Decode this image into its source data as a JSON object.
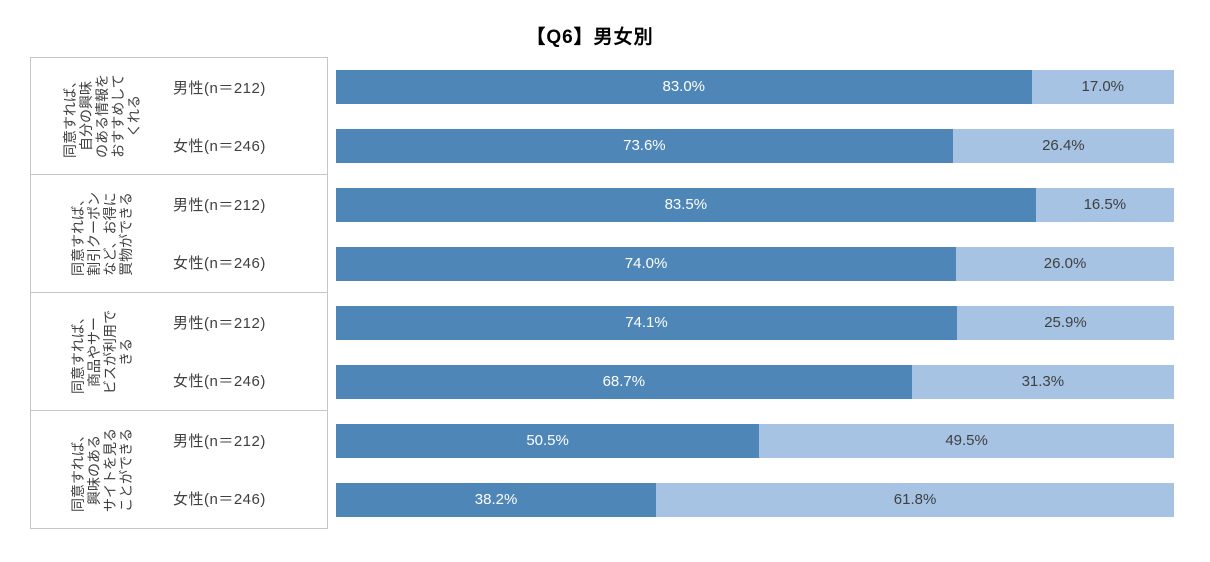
{
  "title": "【Q6】男女別",
  "colors": {
    "segment_primary": "#4e86b8",
    "segment_secondary": "#a6c3e3",
    "label_box_border": "#c6c6c6",
    "label_text": "#404040"
  },
  "chart_data": {
    "type": "bar",
    "orientation": "horizontal",
    "stacked": true,
    "title": "【Q6】男女別",
    "value_suffix": "%",
    "xlim": [
      0,
      100
    ],
    "grid": false,
    "legend": false,
    "groups": [
      {
        "label": "同意すれば、\n自分の興味\nのある情報を\nおすすめして\nくれる",
        "rows": [
          {
            "label": "男性(n＝212)",
            "values": [
              83.0,
              17.0
            ]
          },
          {
            "label": "女性(n＝246)",
            "values": [
              73.6,
              26.4
            ]
          }
        ]
      },
      {
        "label": "同意すれば、\n割引クーポン\nなど、お得に\n買物ができる",
        "rows": [
          {
            "label": "男性(n＝212)",
            "values": [
              83.5,
              16.5
            ]
          },
          {
            "label": "女性(n＝246)",
            "values": [
              74.0,
              26.0
            ]
          }
        ]
      },
      {
        "label": "同意すれば、\n商品やサー\nビスが利用で\nきる",
        "rows": [
          {
            "label": "男性(n＝212)",
            "values": [
              74.1,
              25.9
            ]
          },
          {
            "label": "女性(n＝246)",
            "values": [
              68.7,
              31.3
            ]
          }
        ]
      },
      {
        "label": "同意すれば、\n興味のある\nサイトを見る\nことができる",
        "rows": [
          {
            "label": "男性(n＝212)",
            "values": [
              50.5,
              49.5
            ]
          },
          {
            "label": "女性(n＝246)",
            "values": [
              38.2,
              61.8
            ]
          }
        ]
      }
    ]
  }
}
